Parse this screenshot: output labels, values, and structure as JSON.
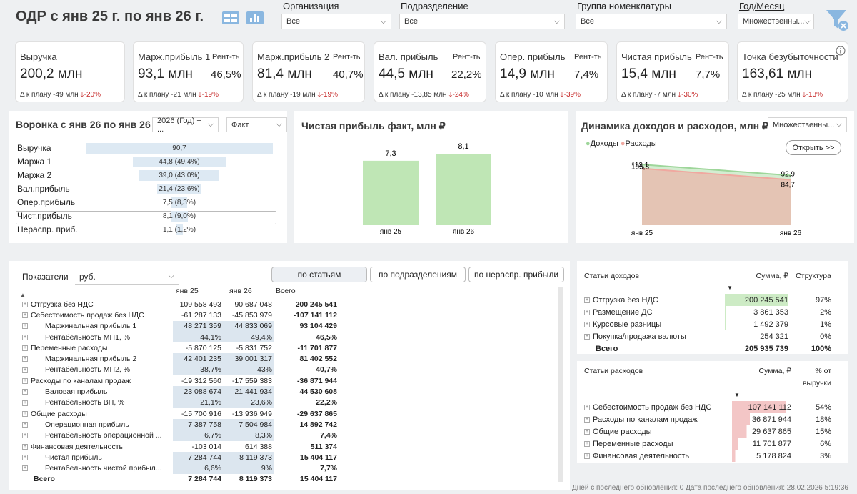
{
  "header": {
    "title": "ОДР с янв 25 г. по янв 26 г.",
    "filters": [
      {
        "label": "Организация",
        "value": "Все"
      },
      {
        "label": "Подразделение",
        "value": "Все"
      },
      {
        "label": "Группа номенклатуры",
        "value": "Все"
      },
      {
        "label": "Год/Месяц",
        "value": "Множественны..."
      }
    ]
  },
  "kpis": [
    {
      "name": "Выручка",
      "value": "200,2 млн",
      "delta": "Δ к плану -49 млн",
      "delta_pct": "-20%"
    },
    {
      "name": "Марж.прибыль 1",
      "rent_label": "Рент-ть",
      "value": "93,1 млн",
      "pct": "46,5%",
      "delta": "Δ к плану -21 млн",
      "delta_pct": "-19%"
    },
    {
      "name": "Марж.прибыль 2",
      "rent_label": "Рент-ть",
      "value": "81,4 млн",
      "pct": "40,7%",
      "delta": "Δ к плану -19 млн",
      "delta_pct": "-19%"
    },
    {
      "name": "Вал. прибыль",
      "rent_label": "Рент-ть",
      "value": "44,5 млн",
      "pct": "22,2%",
      "delta": "Δ к плану -13,85 млн",
      "delta_pct": "-24%"
    },
    {
      "name": "Опер. прибыль",
      "rent_label": "Рент-ть",
      "value": "14,9 млн",
      "pct": "7,4%",
      "delta": "Δ к плану -10 млн",
      "delta_pct": "-39%"
    },
    {
      "name": "Чистая прибыль",
      "rent_label": "Рент-ть",
      "value": "15,4 млн",
      "pct": "7,7%",
      "delta": "Δ к плану -7 млн",
      "delta_pct": "-30%"
    },
    {
      "name": "Точка безубыточности",
      "value": "163,61 млн",
      "delta": "Δ к плану -25 млн",
      "delta_pct": "-13%"
    }
  ],
  "funnel": {
    "title": "Воронка с янв 26 по янв 26",
    "period_select": "2026 (Год) + ...",
    "mode_select": "Факт",
    "rows": [
      {
        "label": "Выручка",
        "text": "90,7",
        "value": 90.7
      },
      {
        "label": "Маржа 1",
        "text": "44,8 (49,4%)",
        "value": 44.8
      },
      {
        "label": "Маржа 2",
        "text": "39,0 (43,0%)",
        "value": 39.0
      },
      {
        "label": "Вал.прибыль",
        "text": "21,4 (23,6%)",
        "value": 21.4
      },
      {
        "label": "Опер.прибыль",
        "text": "7,5 (8,3%)",
        "value": 7.5
      },
      {
        "label": "Чист.прибыль",
        "text": "8,1 (9,0%)",
        "value": 8.1
      },
      {
        "label": "Нераспр. приб.",
        "text": "1,1 (1,2%)",
        "value": 1.1
      }
    ]
  },
  "chart_data": [
    {
      "type": "bar",
      "title": "Чистая прибыль факт, млн ₽",
      "categories": [
        "янв 25",
        "янв 26"
      ],
      "values": [
        7.3,
        8.1
      ],
      "value_labels": [
        "7,3",
        "8,1"
      ],
      "colors": {
        "bar": "#bfe6b5"
      }
    },
    {
      "type": "area",
      "title": "Динамика доходов и расходов, млн ₽",
      "categories": [
        "янв 25",
        "янв 26"
      ],
      "series": [
        {
          "name": "Доходы",
          "values": [
            113.1,
            92.9
          ],
          "labels": [
            "113,1",
            "92,9"
          ],
          "color": "#9ed69a"
        },
        {
          "name": "Расходы",
          "values": [
            105.8,
            84.7
          ],
          "labels": [
            "105,8",
            "84,7"
          ],
          "color": "#f0a8a0"
        }
      ],
      "select": "Множественны...",
      "open_button": "Открыть >>"
    }
  ],
  "matrix": {
    "indicators_label": "Показатели",
    "unit": "руб.",
    "tabs": [
      "по статьям",
      "по подразделениям",
      "по нераспр. прибыли"
    ],
    "columns": [
      "янв 25",
      "янв 26",
      "Всего"
    ],
    "rows": [
      {
        "label": "Отгрузка без НДС",
        "exp": true,
        "ind": 0,
        "a": "109 558 493",
        "b": "90 687 048",
        "t": "200 245 541"
      },
      {
        "label": "Себестоимость продаж без НДС",
        "exp": true,
        "ind": 0,
        "a": "-61 287 133",
        "b": "-45 853 979",
        "t": "-107 141 112"
      },
      {
        "label": "Маржинальная прибыль 1",
        "exp": true,
        "ind": 1,
        "a": "48 271 359",
        "b": "44 833 069",
        "t": "93 104 429",
        "hl": true
      },
      {
        "label": "Рентабельность МП1, %",
        "exp": true,
        "ind": 1,
        "a": "44,1%",
        "b": "49,4%",
        "t": "46,5%",
        "hl": true
      },
      {
        "label": "Переменные расходы",
        "exp": true,
        "ind": 0,
        "a": "-5 870 125",
        "b": "-5 831 752",
        "t": "-11 701 877"
      },
      {
        "label": "Маржинальная прибыль 2",
        "exp": true,
        "ind": 1,
        "a": "42 401 235",
        "b": "39 001 317",
        "t": "81 402 552",
        "hl": true
      },
      {
        "label": "Рентабельность МП2, %",
        "exp": true,
        "ind": 1,
        "a": "38,7%",
        "b": "43%",
        "t": "40,7%",
        "hl": true
      },
      {
        "label": "Расходы по каналам продаж",
        "exp": true,
        "ind": 0,
        "a": "-19 312 560",
        "b": "-17 559 383",
        "t": "-36 871 944"
      },
      {
        "label": "Валовая прибыль",
        "exp": true,
        "ind": 1,
        "a": "23 088 674",
        "b": "21 441 934",
        "t": "44 530 608",
        "hl": true
      },
      {
        "label": "Рентабельность ВП, %",
        "exp": true,
        "ind": 1,
        "a": "21,1%",
        "b": "23,6%",
        "t": "22,2%",
        "hl": true
      },
      {
        "label": "Общие расходы",
        "exp": true,
        "ind": 0,
        "a": "-15 700 916",
        "b": "-13 936 949",
        "t": "-29 637 865"
      },
      {
        "label": "Операционная прибыль",
        "exp": true,
        "ind": 1,
        "a": "7 387 758",
        "b": "7 504 984",
        "t": "14 892 742",
        "hl": true
      },
      {
        "label": "Рентабельность операционной ...",
        "exp": true,
        "ind": 1,
        "a": "6,7%",
        "b": "8,3%",
        "t": "7,4%",
        "hl": true
      },
      {
        "label": "Финансовая деятельность",
        "exp": true,
        "ind": 0,
        "a": "-103 014",
        "b": "614 388",
        "t": "511 374"
      },
      {
        "label": "Чистая прибыль",
        "exp": true,
        "ind": 1,
        "a": "7 284 744",
        "b": "8 119 373",
        "t": "15 404 117",
        "hl": true
      },
      {
        "label": "Рентабельность чистой прибыл...",
        "exp": true,
        "ind": 1,
        "a": "6,6%",
        "b": "9%",
        "t": "7,7%",
        "hl": true
      },
      {
        "label": "Всего",
        "exp": false,
        "ind": 0,
        "a": "7 284 744",
        "b": "8 119 373",
        "t": "15 404 117",
        "bold": true
      }
    ]
  },
  "income": {
    "headers": [
      "Статьи доходов",
      "Сумма, ₽",
      "Структура"
    ],
    "rows": [
      {
        "label": "Отгрузка без НДС",
        "sum": "200 245 541",
        "pct": "97%",
        "share": 0.97
      },
      {
        "label": "Размещение ДС",
        "sum": "3 861 353",
        "pct": "2%",
        "share": 0.02
      },
      {
        "label": "Курсовые разницы",
        "sum": "1 492 379",
        "pct": "1%",
        "share": 0.01
      },
      {
        "label": "Покупка/продажа валюты",
        "sum": "254 321",
        "pct": "0%",
        "share": 0.0
      }
    ],
    "total_label": "Всего",
    "total_sum": "205 935 739",
    "total_pct": "100%"
  },
  "expenses": {
    "headers": [
      "Статьи расходов",
      "Сумма, ₽",
      "% от",
      "выручки"
    ],
    "rows": [
      {
        "label": "Себестоимость продаж без НДС",
        "sum": "107 141 112",
        "pct": "54%",
        "share": 0.54
      },
      {
        "label": "Расходы по каналам продаж",
        "sum": "36 871 944",
        "pct": "18%",
        "share": 0.18
      },
      {
        "label": "Общие расходы",
        "sum": "29 637 865",
        "pct": "15%",
        "share": 0.15
      },
      {
        "label": "Переменные расходы",
        "sum": "11 701 877",
        "pct": "6%",
        "share": 0.06
      },
      {
        "label": "Финансовая деятельность",
        "sum": "5 178 824",
        "pct": "3%",
        "share": 0.03
      }
    ]
  },
  "footer": "Дней с последнего обновления: 0 Дата последнего обновления: 28.02.2026 5:19:36",
  "colors": {
    "accent": "#7ab0dd",
    "down": "#c62828",
    "funnel_bar": "#dde9f3",
    "matrix_highlight": "#dce6ef",
    "income_bar": "#cdebc5",
    "expense_bar": "#f3c6c6"
  }
}
